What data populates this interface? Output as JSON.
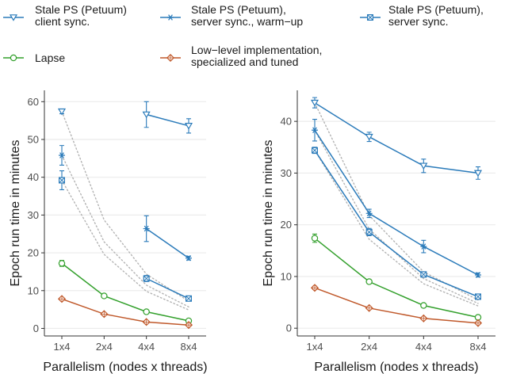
{
  "colors": {
    "stale_client": "#2b7bba",
    "stale_warm": "#2b7bba",
    "stale_server": "#2b7bba",
    "lapse": "#33a02c",
    "low_level": "#c0592b",
    "ideal_scaling": "#b3b3b3",
    "grid": "#ebebeb",
    "axis": "#333333"
  },
  "legend": [
    {
      "key": "stale_client",
      "marker": "triangle-down",
      "lines": [
        "Stale PS (Petuum)",
        "client sync."
      ]
    },
    {
      "key": "stale_warm",
      "marker": "asterisk",
      "lines": [
        "Stale PS (Petuum),",
        "server sync., warm−up"
      ]
    },
    {
      "key": "stale_server",
      "marker": "square-x",
      "lines": [
        "Stale PS (Petuum),",
        "server sync."
      ]
    },
    {
      "key": "lapse",
      "marker": "circle",
      "lines": [
        "Lapse"
      ]
    },
    {
      "key": "low_level",
      "marker": "diamond",
      "lines": [
        "Low−level implementation,",
        "specialized and tuned"
      ]
    }
  ],
  "chart_data": [
    {
      "type": "line",
      "xlabel": "Parallelism (nodes x threads)",
      "ylabel": "Epoch run time in minutes",
      "categories": [
        "1x4",
        "2x4",
        "4x4",
        "8x4"
      ],
      "yticks": [
        0,
        10,
        20,
        30,
        40,
        50,
        60
      ],
      "ylim": [
        -2,
        63
      ],
      "grid": true,
      "series": [
        {
          "name": "Stale PS (Petuum) client sync.",
          "key": "stale_client",
          "marker": "triangle-down",
          "segments": [
            [
              57.4,
              null,
              null,
              null
            ],
            [
              null,
              null,
              56.6,
              53.6
            ]
          ],
          "errors": [
            [
              0.6,
              null,
              3.4,
              1.9
            ]
          ]
        },
        {
          "name": "Stale PS (Petuum), server sync., warm−up",
          "key": "stale_warm",
          "marker": "asterisk",
          "segments": [
            [
              45.8,
              null,
              null,
              null
            ],
            [
              null,
              null,
              26.4,
              18.6
            ]
          ],
          "errors": [
            [
              2.6,
              null,
              3.4,
              0.5
            ]
          ]
        },
        {
          "name": "Stale PS (Petuum), server sync.",
          "key": "stale_server",
          "marker": "square-x",
          "segments": [
            [
              39.2,
              null,
              null,
              null
            ],
            [
              null,
              null,
              13.2,
              7.9
            ]
          ],
          "errors": [
            [
              2.5,
              null,
              0.8,
              0.6
            ]
          ]
        },
        {
          "name": "Lapse",
          "key": "lapse",
          "marker": "circle",
          "segments": [
            [
              17.2,
              8.6,
              4.4,
              2.0
            ]
          ],
          "errors": [
            [
              0.8,
              0.3,
              0.4,
              0.3
            ]
          ]
        },
        {
          "name": "Low−level implementation, specialized and tuned",
          "key": "low_level",
          "marker": "diamond",
          "segments": [
            [
              7.8,
              3.8,
              1.7,
              0.9
            ]
          ],
          "errors": [
            [
              0.3,
              0.3,
              0.2,
              0.2
            ]
          ]
        }
      ],
      "ideal_scaling": [
        [
          57.4,
          28.7,
          14.35,
          7.2
        ],
        [
          45.8,
          22.9,
          11.45,
          5.7
        ],
        [
          39.2,
          19.6,
          9.8,
          4.9
        ]
      ]
    },
    {
      "type": "line",
      "xlabel": "Parallelism (nodes x threads)",
      "ylabel": "Epoch run time in minutes",
      "categories": [
        "1x4",
        "2x4",
        "4x4",
        "8x4"
      ],
      "yticks": [
        0,
        10,
        20,
        30,
        40
      ],
      "ylim": [
        -1.5,
        46
      ],
      "grid": true,
      "series": [
        {
          "name": "Stale PS (Petuum) client sync.",
          "key": "stale_client",
          "marker": "triangle-down",
          "segments": [
            [
              43.6,
              37.0,
              31.4,
              30.0
            ]
          ],
          "errors": [
            [
              1.0,
              0.9,
              1.3,
              1.2
            ]
          ]
        },
        {
          "name": "Stale PS (Petuum), server sync., warm−up",
          "key": "stale_warm",
          "marker": "asterisk",
          "segments": [
            [
              38.3,
              22.2,
              15.8,
              10.3
            ]
          ],
          "errors": [
            [
              2.1,
              0.8,
              1.2,
              0.4
            ]
          ]
        },
        {
          "name": "Stale PS (Petuum), server sync.",
          "key": "stale_server",
          "marker": "square-x",
          "segments": [
            [
              34.4,
              18.6,
              10.4,
              6.1
            ]
          ],
          "errors": [
            [
              0.6,
              0.7,
              0.5,
              0.3
            ]
          ]
        },
        {
          "name": "Lapse",
          "key": "lapse",
          "marker": "circle",
          "segments": [
            [
              17.4,
              9.0,
              4.4,
              2.1
            ]
          ],
          "errors": [
            [
              0.8,
              0.3,
              0.3,
              0.2
            ]
          ]
        },
        {
          "name": "Low−level implementation, specialized and tuned",
          "key": "low_level",
          "marker": "diamond",
          "segments": [
            [
              7.8,
              3.9,
              1.9,
              1.0
            ]
          ],
          "errors": [
            [
              0.3,
              0.2,
              0.2,
              0.2
            ]
          ]
        }
      ],
      "ideal_scaling": [
        [
          43.6,
          21.8,
          10.9,
          5.45
        ],
        [
          38.3,
          19.15,
          9.6,
          4.8
        ],
        [
          34.4,
          17.2,
          8.6,
          4.3
        ]
      ]
    }
  ]
}
